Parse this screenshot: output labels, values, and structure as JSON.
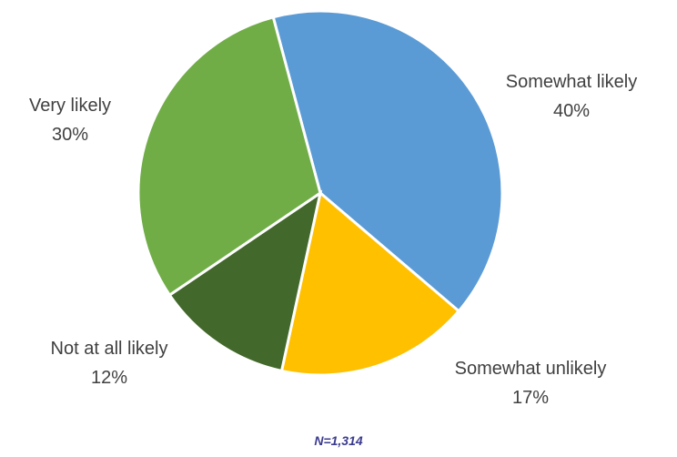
{
  "chart_data": {
    "type": "pie",
    "slices": [
      {
        "label": "Somewhat likely",
        "value": 40,
        "display": "40%",
        "color": "#5B9BD5"
      },
      {
        "label": "Somewhat unlikely",
        "value": 17,
        "display": "17%",
        "color": "#FFC000"
      },
      {
        "label": "Not at all likely",
        "value": 12,
        "display": "12%",
        "color": "#43682B"
      },
      {
        "label": "Very likely",
        "value": 30,
        "display": "30%",
        "color": "#70AD47"
      }
    ],
    "start_angle_deg": 345,
    "direction": "clockwise",
    "note": "N=1,314"
  }
}
